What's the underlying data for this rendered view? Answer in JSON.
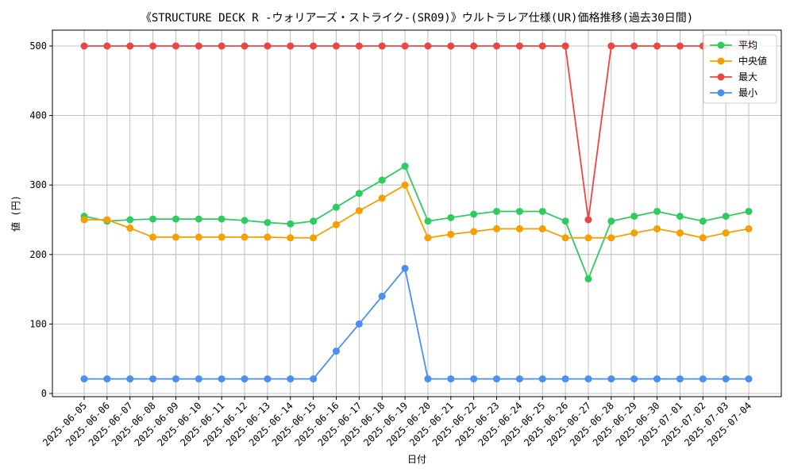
{
  "chart_data": {
    "type": "line",
    "title": "《STRUCTURE DECK R -ウォリアーズ・ストライク-(SR09)》ウルトラレア仕様(UR)価格推移(過去30日間)",
    "xlabel": "日付",
    "ylabel": "値 (円)",
    "ylim": [
      0,
      520
    ],
    "yticks": [
      0,
      100,
      200,
      300,
      400,
      500
    ],
    "grid": true,
    "legend_position": "top-right",
    "categories": [
      "2025-06-05",
      "2025-06-06",
      "2025-06-07",
      "2025-06-08",
      "2025-06-09",
      "2025-06-10",
      "2025-06-11",
      "2025-06-12",
      "2025-06-13",
      "2025-06-14",
      "2025-06-15",
      "2025-06-16",
      "2025-06-17",
      "2025-06-18",
      "2025-06-19",
      "2025-06-20",
      "2025-06-21",
      "2025-06-22",
      "2025-06-23",
      "2025-06-24",
      "2025-06-25",
      "2025-06-26",
      "2025-06-27",
      "2025-06-28",
      "2025-06-29",
      "2025-06-30",
      "2025-07-01",
      "2025-07-02",
      "2025-07-03",
      "2025-07-04"
    ],
    "series": [
      {
        "name": "平均",
        "color": "#2ecc5f",
        "values": [
          255,
          248,
          250,
          251,
          251,
          251,
          251,
          249,
          246,
          244,
          248,
          268,
          288,
          307,
          327,
          248,
          253,
          258,
          262,
          262,
          262,
          248,
          165,
          248,
          255,
          262,
          255,
          248,
          255,
          262
        ]
      },
      {
        "name": "中央値",
        "color": "#f5a000",
        "values": [
          250,
          250,
          238,
          225,
          225,
          225,
          225,
          225,
          225,
          224,
          224,
          243,
          263,
          281,
          300,
          224,
          229,
          233,
          237,
          237,
          237,
          224,
          224,
          224,
          231,
          237,
          231,
          224,
          231,
          237
        ]
      },
      {
        "name": "最大",
        "color": "#ef4444",
        "values": [
          500,
          500,
          500,
          500,
          500,
          500,
          500,
          500,
          500,
          500,
          500,
          500,
          500,
          500,
          500,
          500,
          500,
          500,
          500,
          500,
          500,
          500,
          250,
          500,
          500,
          500,
          500,
          500,
          500,
          500
        ]
      },
      {
        "name": "最小",
        "color": "#4a90f0",
        "values": [
          21,
          21,
          21,
          21,
          21,
          21,
          21,
          21,
          21,
          21,
          21,
          61,
          100,
          140,
          180,
          21,
          21,
          21,
          21,
          21,
          21,
          21,
          21,
          21,
          21,
          21,
          21,
          21,
          21,
          21
        ]
      }
    ]
  }
}
